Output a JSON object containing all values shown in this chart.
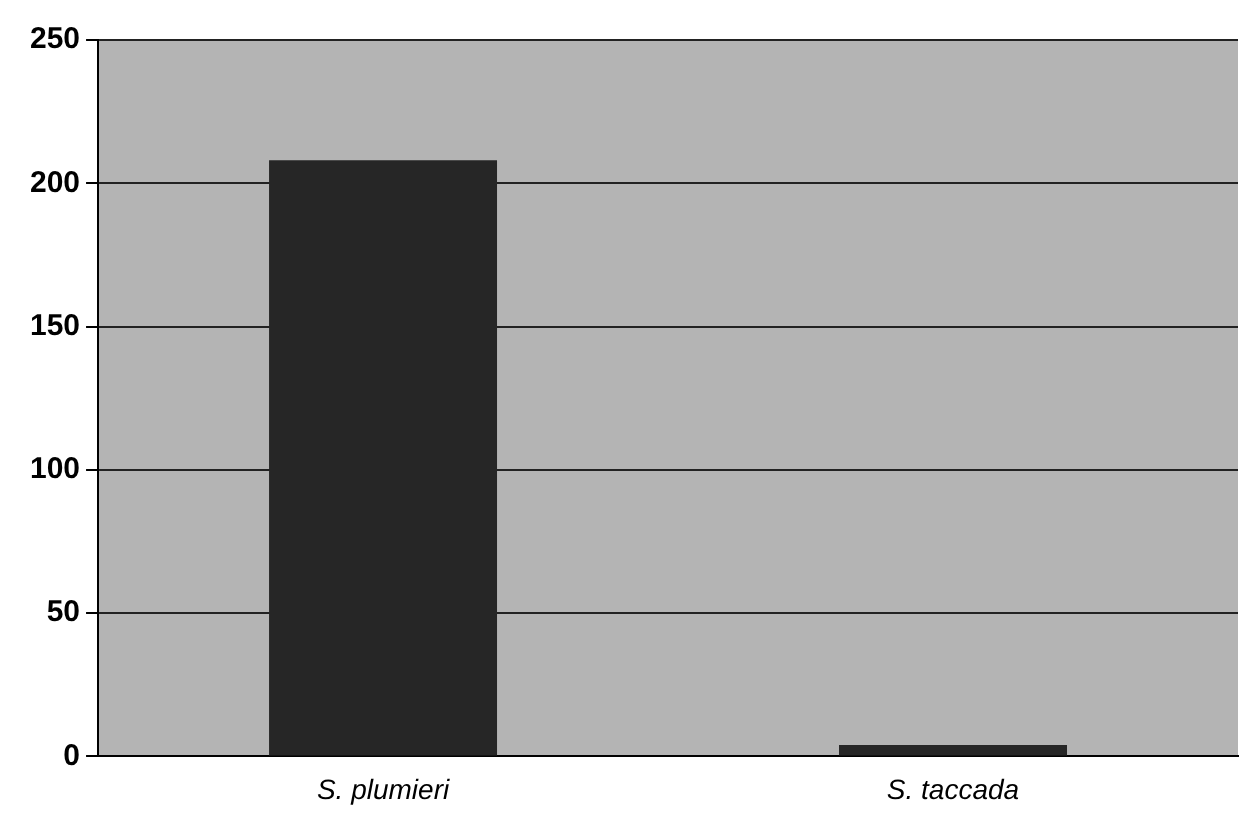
{
  "chart_data": {
    "type": "bar",
    "categories": [
      "S. plumieri",
      "S. taccada"
    ],
    "values": [
      208,
      4
    ],
    "color": "#262626",
    "ylim": [
      0,
      250
    ],
    "yticks": [
      0,
      50,
      100,
      150,
      200,
      250
    ],
    "grid": "y"
  }
}
